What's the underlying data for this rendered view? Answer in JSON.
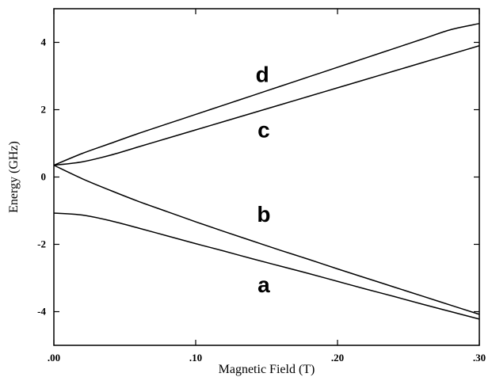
{
  "chart_data": {
    "type": "line",
    "xlabel": "Magnetic Field (T)",
    "ylabel": "Energy (GHz)",
    "xlim": [
      0,
      0.3
    ],
    "ylim": [
      -5,
      5
    ],
    "x_ticks": [
      0,
      0.1,
      0.2,
      0.3
    ],
    "x_tick_labels": [
      ".00",
      ".10",
      ".20",
      ".30"
    ],
    "y_ticks": [
      -4,
      -2,
      0,
      2,
      4
    ],
    "y_tick_labels": [
      "-4",
      "-2",
      "0",
      "2",
      "4"
    ],
    "grid": false,
    "line_color": "#000000",
    "series": [
      {
        "name": "a",
        "x": [
          0,
          0.02,
          0.04,
          0.06,
          0.08,
          0.1,
          0.12,
          0.14,
          0.16,
          0.18,
          0.2,
          0.22,
          0.24,
          0.26,
          0.28,
          0.3
        ],
        "y": [
          -1.07,
          -1.13,
          -1.3,
          -1.52,
          -1.75,
          -1.98,
          -2.2,
          -2.43,
          -2.65,
          -2.87,
          -3.1,
          -3.33,
          -3.55,
          -3.78,
          -4.0,
          -4.22
        ]
      },
      {
        "name": "b",
        "x": [
          0,
          0.02,
          0.04,
          0.06,
          0.08,
          0.1,
          0.12,
          0.14,
          0.16,
          0.18,
          0.2,
          0.22,
          0.24,
          0.26,
          0.28,
          0.3
        ],
        "y": [
          0.35,
          -0.05,
          -0.4,
          -0.73,
          -1.03,
          -1.33,
          -1.62,
          -1.9,
          -2.18,
          -2.45,
          -2.73,
          -3.0,
          -3.27,
          -3.54,
          -3.81,
          -4.08
        ]
      },
      {
        "name": "c",
        "x": [
          0,
          0.02,
          0.04,
          0.06,
          0.08,
          0.1,
          0.12,
          0.14,
          0.16,
          0.18,
          0.2,
          0.22,
          0.24,
          0.26,
          0.28,
          0.3
        ],
        "y": [
          0.35,
          0.45,
          0.65,
          0.9,
          1.15,
          1.4,
          1.65,
          1.9,
          2.15,
          2.4,
          2.65,
          2.9,
          3.15,
          3.4,
          3.65,
          3.9
        ]
      },
      {
        "name": "d",
        "x": [
          0,
          0.02,
          0.04,
          0.06,
          0.08,
          0.1,
          0.12,
          0.14,
          0.16,
          0.18,
          0.2,
          0.22,
          0.24,
          0.26,
          0.28,
          0.3
        ],
        "y": [
          0.35,
          0.7,
          1.0,
          1.3,
          1.58,
          1.86,
          2.14,
          2.42,
          2.7,
          2.98,
          3.26,
          3.54,
          3.82,
          4.1,
          4.38,
          4.56
        ]
      }
    ],
    "annotations": [
      {
        "text": "d",
        "x": 0.147,
        "y": 3.0
      },
      {
        "text": "c",
        "x": 0.148,
        "y": 1.35
      },
      {
        "text": "b",
        "x": 0.148,
        "y": -1.15
      },
      {
        "text": "a",
        "x": 0.148,
        "y": -3.25
      }
    ]
  }
}
